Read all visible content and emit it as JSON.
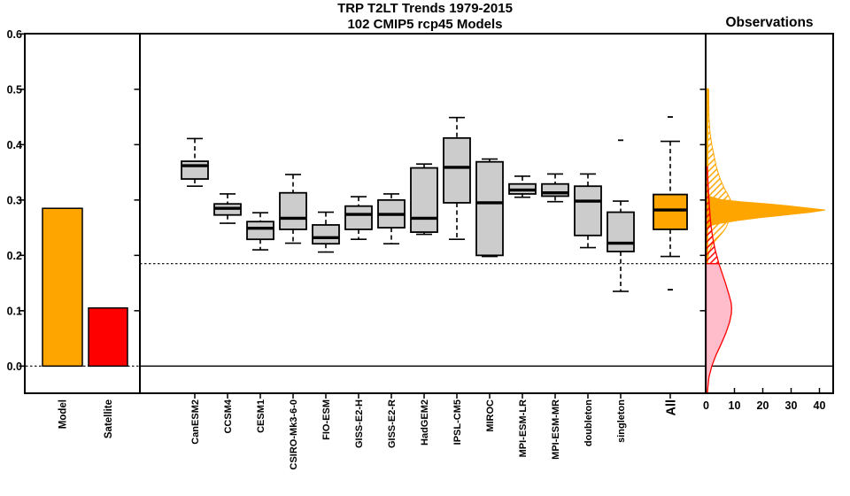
{
  "titles": {
    "line1": "TRP T2LT Trends 1979-2015",
    "line2": "102 CMIP5 rcp45 Models",
    "observations": "Observations"
  },
  "colors": {
    "model_orange": "#FFA500",
    "satellite_red": "#FF0000",
    "box_gray": "#CCCCCC",
    "pink_fill": "#FFBCCB",
    "axis_black": "#000000"
  },
  "chart_data": [
    {
      "type": "bar",
      "panel": "left",
      "categories": [
        "Model",
        "Satellite"
      ],
      "values": [
        0.285,
        0.105
      ],
      "bar_colors": [
        "#FFA500",
        "#FF0000"
      ],
      "ylim": [
        -0.05,
        0.6
      ],
      "yticks": [
        0.0,
        0.1,
        0.2,
        0.3,
        0.4,
        0.5,
        0.6
      ],
      "ytick_labels": [
        "0.0",
        "0.1",
        "0.2",
        "0.3",
        "0.4",
        "0.5",
        "0.6"
      ],
      "zero_line_style": "dotted"
    },
    {
      "type": "boxplot",
      "panel": "middle",
      "ylim": [
        -0.05,
        0.6
      ],
      "reference_line_dotted": 0.185,
      "zero_line": 0.0,
      "box_fill_default": "#CCCCCC",
      "highlight_model": "All",
      "highlight_fill": "#FFA500",
      "models": [
        {
          "label": "CanESM2",
          "whislo": 0.325,
          "q1": 0.338,
          "med": 0.362,
          "q3": 0.37,
          "whishi": 0.411,
          "outliers": []
        },
        {
          "label": "CCSM4",
          "whislo": 0.258,
          "q1": 0.273,
          "med": 0.285,
          "q3": 0.293,
          "whishi": 0.311,
          "outliers": []
        },
        {
          "label": "CESM1",
          "whislo": 0.21,
          "q1": 0.229,
          "med": 0.249,
          "q3": 0.261,
          "whishi": 0.277,
          "outliers": []
        },
        {
          "label": "CSIRO-Mk3-6-0",
          "whislo": 0.222,
          "q1": 0.247,
          "med": 0.267,
          "q3": 0.313,
          "whishi": 0.346,
          "outliers": []
        },
        {
          "label": "FIO-ESM",
          "whislo": 0.206,
          "q1": 0.221,
          "med": 0.232,
          "q3": 0.255,
          "whishi": 0.278,
          "outliers": []
        },
        {
          "label": "GISS-E2-H",
          "whislo": 0.229,
          "q1": 0.247,
          "med": 0.274,
          "q3": 0.289,
          "whishi": 0.306,
          "outliers": []
        },
        {
          "label": "GISS-E2-R",
          "whislo": 0.221,
          "q1": 0.25,
          "med": 0.274,
          "q3": 0.3,
          "whishi": 0.311,
          "outliers": []
        },
        {
          "label": "HadGEM2",
          "whislo": 0.238,
          "q1": 0.242,
          "med": 0.267,
          "q3": 0.358,
          "whishi": 0.365,
          "outliers": []
        },
        {
          "label": "IPSL-CM5",
          "whislo": 0.229,
          "q1": 0.295,
          "med": 0.359,
          "q3": 0.412,
          "whishi": 0.449,
          "outliers": []
        },
        {
          "label": "MIROC",
          "whislo": 0.198,
          "q1": 0.2,
          "med": 0.295,
          "q3": 0.369,
          "whishi": 0.374,
          "outliers": []
        },
        {
          "label": "MPI-ESM-LR",
          "whislo": 0.305,
          "q1": 0.311,
          "med": 0.318,
          "q3": 0.329,
          "whishi": 0.343,
          "outliers": []
        },
        {
          "label": "MPI-ESM-MR",
          "whislo": 0.297,
          "q1": 0.307,
          "med": 0.313,
          "q3": 0.329,
          "whishi": 0.347,
          "outliers": []
        },
        {
          "label": "doubleton",
          "whislo": 0.214,
          "q1": 0.236,
          "med": 0.298,
          "q3": 0.325,
          "whishi": 0.347,
          "outliers": []
        },
        {
          "label": "singleton",
          "whislo": 0.135,
          "q1": 0.207,
          "med": 0.222,
          "q3": 0.278,
          "whishi": 0.298,
          "outliers": [
            0.408
          ]
        },
        {
          "label": "All",
          "whislo": 0.198,
          "q1": 0.247,
          "med": 0.282,
          "q3": 0.31,
          "whishi": 0.406,
          "outliers": [
            0.45,
            0.138
          ]
        }
      ]
    },
    {
      "type": "density",
      "panel": "right",
      "title": "Observations",
      "xticks": [
        0,
        10,
        20,
        30,
        40
      ],
      "xtick_labels": [
        "0",
        "10",
        "20",
        "30",
        "40"
      ],
      "xlim": [
        0,
        45
      ],
      "ylim": [
        -0.05,
        0.6
      ],
      "reference_line_dotted": 0.185,
      "zero_line": 0.0,
      "series": [
        {
          "name": "model-trend-density",
          "color": "#FFA500",
          "style": "hatched envelope with solid core spike",
          "baseline_strip": {
            "top": 0.502,
            "width_units": 0.9
          },
          "envelope": [
            [
              0.5,
              0.9
            ],
            [
              0.45,
              1.0
            ],
            [
              0.42,
              1.4
            ],
            [
              0.4,
              2.0
            ],
            [
              0.38,
              2.8
            ],
            [
              0.36,
              3.6
            ],
            [
              0.34,
              4.8
            ],
            [
              0.32,
              6.5
            ],
            [
              0.31,
              7.7
            ],
            [
              0.3,
              8.6
            ],
            [
              0.29,
              9.2
            ],
            [
              0.28,
              9.3
            ],
            [
              0.27,
              8.8
            ],
            [
              0.26,
              7.8
            ],
            [
              0.25,
              7.0
            ],
            [
              0.24,
              5.6
            ],
            [
              0.23,
              3.8
            ],
            [
              0.22,
              2.2
            ],
            [
              0.21,
              1.3
            ],
            [
              0.2,
              0.8
            ],
            [
              0.19,
              0.6
            ]
          ],
          "core": [
            [
              0.312,
              0.8
            ],
            [
              0.306,
              1.5
            ],
            [
              0.301,
              5.0
            ],
            [
              0.297,
              12.0
            ],
            [
              0.293,
              22.0
            ],
            [
              0.289,
              30.0
            ],
            [
              0.285,
              37.0
            ],
            [
              0.282,
              42.0
            ],
            [
              0.278,
              37.0
            ],
            [
              0.273,
              28.0
            ],
            [
              0.268,
              19.0
            ],
            [
              0.263,
              11.0
            ],
            [
              0.258,
              5.0
            ],
            [
              0.254,
              1.5
            ],
            [
              0.25,
              0.8
            ]
          ],
          "peak": {
            "y_value": 0.282,
            "density": 42
          }
        },
        {
          "name": "satellite-trend-density",
          "color": "#FF0000",
          "fill": "#FFBCCB",
          "style": "hatched above 0.185, solid pink below",
          "hatched_above": 0.185,
          "envelope": [
            [
              0.36,
              0.4
            ],
            [
              0.33,
              0.7
            ],
            [
              0.3,
              1.0
            ],
            [
              0.27,
              1.4
            ],
            [
              0.25,
              1.8
            ],
            [
              0.23,
              2.4
            ],
            [
              0.21,
              3.2
            ],
            [
              0.195,
              4.0
            ],
            [
              0.185,
              4.5
            ],
            [
              0.17,
              5.5
            ],
            [
              0.15,
              6.8
            ],
            [
              0.13,
              8.0
            ],
            [
              0.115,
              8.8
            ],
            [
              0.105,
              9.0
            ],
            [
              0.095,
              8.9
            ],
            [
              0.08,
              8.3
            ],
            [
              0.06,
              7.0
            ],
            [
              0.04,
              5.3
            ],
            [
              0.02,
              3.5
            ],
            [
              0.0,
              2.0
            ],
            [
              -0.02,
              1.0
            ],
            [
              -0.048,
              0.4
            ]
          ],
          "peak": {
            "y_value": 0.105,
            "density": 9
          }
        }
      ]
    }
  ]
}
